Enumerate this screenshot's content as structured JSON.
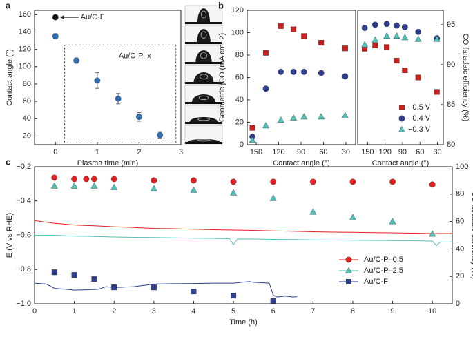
{
  "chart_data": [
    {
      "type": "scatter",
      "label": "a",
      "xlabel": "Plasma time (min)",
      "ylabel": "Contact angle (°)",
      "xlim": [
        -0.5,
        3
      ],
      "xticks": [
        0,
        1,
        2,
        3
      ],
      "ylim": [
        10,
        165
      ],
      "yticks": [
        20,
        40,
        60,
        80,
        100,
        120,
        140,
        160
      ],
      "series": [
        {
          "name": "Au/C-F",
          "color": "#111111",
          "marker": "circle",
          "x": [
            0
          ],
          "values": [
            157
          ],
          "yerr": [
            2
          ]
        },
        {
          "name": "Au/C-P–x",
          "color": "#2e6db4",
          "marker": "circle",
          "x": [
            0,
            0.5,
            1,
            1.5,
            2,
            2.5
          ],
          "values": [
            135,
            107,
            84,
            63,
            42,
            21
          ],
          "yerr": [
            3,
            3,
            9,
            6,
            5,
            4
          ]
        }
      ]
    },
    {
      "type": "scatter",
      "label": "b",
      "xlabel": "Contact angle (°)",
      "ylabel": "Geometric jCO (mA cm−2)",
      "xlim": [
        162,
        17
      ],
      "xticks": [
        150,
        120,
        90,
        60,
        30
      ],
      "ylim": [
        0,
        120
      ],
      "yticks": [
        0,
        20,
        40,
        60,
        80,
        100,
        120
      ],
      "series": [
        {
          "color": "#c8201e",
          "marker": "square",
          "x": [
            155,
            137,
            117,
            100,
            86,
            63,
            31
          ],
          "values": [
            15,
            82,
            106,
            103,
            97,
            91,
            86
          ]
        },
        {
          "color": "#2e3f8f",
          "marker": "circle",
          "x": [
            155,
            137,
            117,
            100,
            86,
            63,
            31
          ],
          "values": [
            7,
            50,
            65,
            65,
            65,
            64,
            61
          ]
        },
        {
          "color": "#4fc3b8",
          "marker": "triangle",
          "x": [
            155,
            137,
            117,
            100,
            86,
            63,
            31
          ],
          "values": [
            4,
            17,
            22,
            24,
            25,
            25,
            26
          ]
        }
      ]
    },
    {
      "type": "scatter",
      "xlabel": "Contact angle (°)",
      "y2label": "CO faradaic efficiency (%)",
      "xlim": [
        167,
        20
      ],
      "xticks": [
        150,
        120,
        90,
        60,
        30
      ],
      "y2lim": [
        80,
        96.8
      ],
      "y2ticks": [
        80,
        85,
        90,
        95
      ],
      "legend": "lower right",
      "series": [
        {
          "name": "−0.5 V",
          "color": "#c8201e",
          "marker": "square",
          "axis": "y2",
          "x": [
            155,
            137,
            117,
            100,
            86,
            63,
            31
          ],
          "values": [
            92,
            92.4,
            92.2,
            90.5,
            89.3,
            88.4,
            86.6
          ]
        },
        {
          "name": "−0.4 V",
          "color": "#2e3f8f",
          "marker": "circle",
          "axis": "y2",
          "x": [
            155,
            137,
            117,
            100,
            86,
            63,
            31
          ],
          "values": [
            94.6,
            95,
            95.1,
            94.9,
            94.7,
            94.1,
            93.3
          ]
        },
        {
          "name": "−0.3 V",
          "color": "#4fc3b8",
          "marker": "triangle",
          "axis": "y2",
          "x": [
            155,
            137,
            117,
            100,
            86,
            63,
            31
          ],
          "values": [
            92.5,
            93.1,
            93.6,
            93.6,
            93.4,
            93.2,
            93.2
          ]
        }
      ]
    },
    {
      "type": "line",
      "label": "c",
      "xlabel": "Time (h)",
      "ylabel": "E (V vs RHE)",
      "y2label": "CO faradaic efficiency (%)",
      "xlim": [
        0,
        10.5
      ],
      "xticks": [
        0,
        1,
        2,
        3,
        4,
        5,
        6,
        7,
        8,
        9,
        10
      ],
      "ylim": [
        -1.0,
        -0.2
      ],
      "yticks": [
        {
          "value": -0.2,
          "label": "−0.2"
        },
        {
          "value": -0.4,
          "label": "−0.4"
        },
        {
          "value": -0.6,
          "label": "−0.6"
        },
        {
          "value": -0.8,
          "label": "−0.8"
        },
        {
          "value": -1.0,
          "label": "−1.0"
        }
      ],
      "y2lim": [
        0,
        100
      ],
      "y2ticks": [
        0,
        20,
        40,
        60,
        80,
        100
      ],
      "legend": "lower right",
      "series": [
        {
          "name": "Au/C-P–0.5",
          "color": "#e02020",
          "marker": "circle",
          "x": [
            0,
            0.5,
            1,
            1.5,
            2,
            2.5,
            3,
            3.5,
            4,
            4.5,
            5,
            5.5,
            6,
            6.5,
            7,
            7.5,
            8,
            8.5,
            9,
            9.5,
            10,
            10.5
          ],
          "values": [
            -0.515,
            -0.53,
            -0.54,
            -0.545,
            -0.55,
            -0.555,
            -0.56,
            -0.562,
            -0.565,
            -0.568,
            -0.57,
            -0.572,
            -0.575,
            -0.577,
            -0.58,
            -0.582,
            -0.583,
            -0.585,
            -0.586,
            -0.588,
            -0.59,
            -0.59
          ]
        },
        {
          "name": "Au/C-P–2.5",
          "color": "#4fc3b8",
          "marker": "triangle",
          "x": [
            0,
            0.5,
            1,
            1.5,
            2,
            2.5,
            3,
            3.5,
            4,
            4.5,
            4.9,
            5,
            5.1,
            5.5,
            6,
            6.5,
            7,
            7.5,
            8,
            8.5,
            9,
            9.5,
            10,
            10.1,
            10.2,
            10.5
          ],
          "values": [
            -0.6,
            -0.6,
            -0.605,
            -0.607,
            -0.61,
            -0.612,
            -0.613,
            -0.615,
            -0.617,
            -0.618,
            -0.62,
            -0.655,
            -0.622,
            -0.622,
            -0.624,
            -0.625,
            -0.627,
            -0.628,
            -0.629,
            -0.63,
            -0.631,
            -0.632,
            -0.634,
            -0.66,
            -0.64,
            -0.64
          ]
        },
        {
          "name": "Au/C-F",
          "color": "#2e3f8f",
          "marker": "square",
          "x": [
            0,
            0.3,
            0.5,
            0.8,
            1,
            1.3,
            1.6,
            1.8,
            2,
            2.5,
            3,
            3.5,
            4,
            4.5,
            5,
            5.4,
            5.5,
            5.9,
            6,
            6.1,
            6.3,
            6.5,
            6.6
          ],
          "values": [
            -0.88,
            -0.885,
            -0.91,
            -0.915,
            -0.92,
            -0.918,
            -0.915,
            -0.9,
            -0.905,
            -0.9,
            -0.885,
            -0.883,
            -0.882,
            -0.88,
            -0.88,
            -0.87,
            -0.875,
            -0.88,
            -0.95,
            -0.96,
            -0.955,
            -0.96,
            -0.958
          ]
        },
        {
          "color": "#e02020",
          "marker": "circle",
          "axis": "y2",
          "mode": "markers",
          "x": [
            0.5,
            1,
            1.3,
            1.5,
            2,
            3,
            4,
            5,
            6,
            7,
            8,
            9,
            10
          ],
          "values": [
            92,
            91,
            91,
            91,
            91,
            90,
            90,
            89,
            89,
            89,
            89,
            89,
            87
          ]
        },
        {
          "color": "#4fc3b8",
          "marker": "triangle",
          "axis": "y2",
          "mode": "markers",
          "x": [
            0.5,
            1,
            1.5,
            2,
            3,
            4,
            5,
            6,
            7,
            8,
            9,
            10
          ],
          "values": [
            86,
            86,
            86,
            85,
            84,
            83,
            81,
            77,
            67,
            63,
            60,
            51
          ]
        },
        {
          "color": "#2e3f8f",
          "marker": "square",
          "axis": "y2",
          "mode": "markers",
          "x": [
            0.5,
            1,
            1.5,
            2,
            3,
            4,
            5,
            6
          ],
          "values": [
            23,
            21,
            18,
            12,
            12,
            9,
            6,
            2
          ]
        }
      ]
    }
  ]
}
